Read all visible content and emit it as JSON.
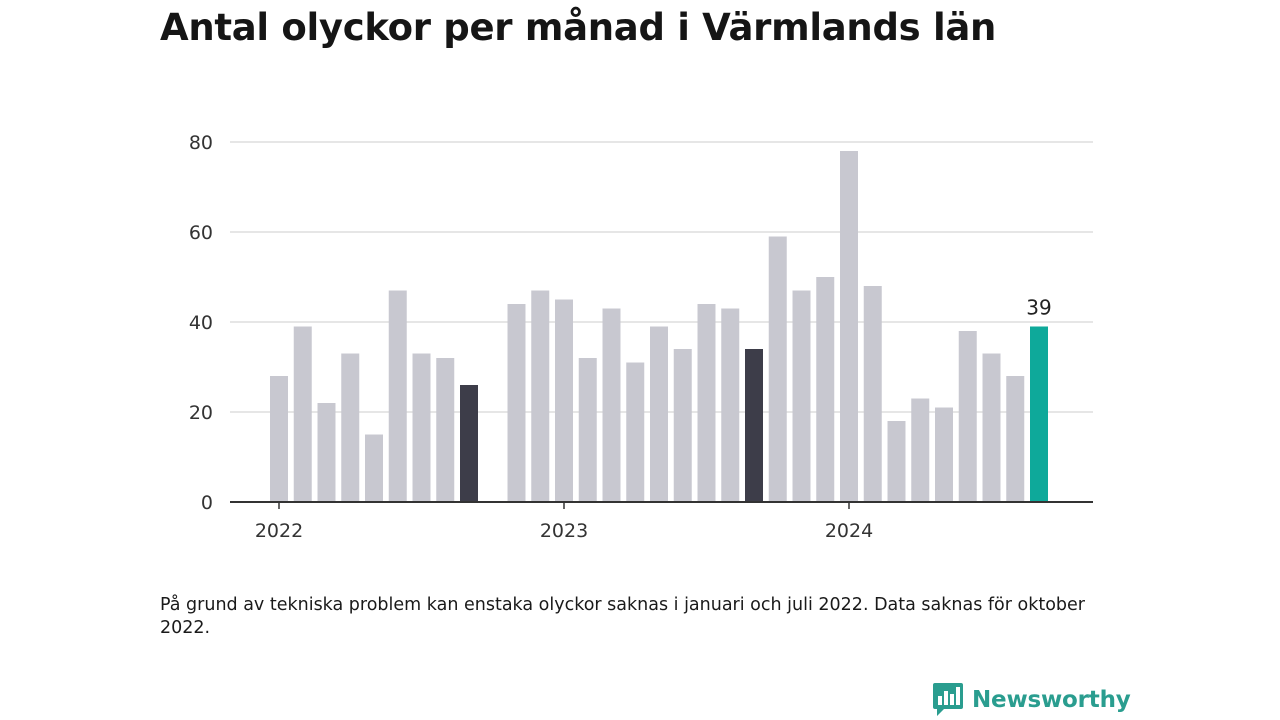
{
  "title": "Antal olyckor per månad i Värmlands län",
  "footnote": "På grund av tekniska problem kan enstaka olyckor saknas i januari och juli 2022. Data saknas för oktober 2022.",
  "brand": {
    "name": "Newsworthy",
    "icon": "bar-chart-speech-bubble-icon",
    "color": "#2a9d8f"
  },
  "colors": {
    "default": "#c8c8d0",
    "highlight_dark": "#3d3d49",
    "highlight_latest": "#0ea99a",
    "grid": "#dddddd",
    "axis": "#333333"
  },
  "chart_data": {
    "type": "bar",
    "title": "Antal olyckor per månad i Värmlands län",
    "xlabel": "",
    "ylabel": "",
    "ylim": [
      0,
      80
    ],
    "yticks": [
      0,
      20,
      40,
      60,
      80
    ],
    "xtick_labels": [
      {
        "label": "2022",
        "month": "2022-01"
      },
      {
        "label": "2023",
        "month": "2023-01"
      },
      {
        "label": "2024",
        "month": "2024-01"
      }
    ],
    "grid": true,
    "legend": "none",
    "x_start": "2022-01",
    "x_end": "2024-09",
    "bars": [
      {
        "month": "2022-01",
        "value": 28,
        "style": "default"
      },
      {
        "month": "2022-02",
        "value": 39,
        "style": "default"
      },
      {
        "month": "2022-03",
        "value": 22,
        "style": "default"
      },
      {
        "month": "2022-04",
        "value": 33,
        "style": "default"
      },
      {
        "month": "2022-05",
        "value": 15,
        "style": "default"
      },
      {
        "month": "2022-06",
        "value": 47,
        "style": "default"
      },
      {
        "month": "2022-07",
        "value": 33,
        "style": "default"
      },
      {
        "month": "2022-08",
        "value": 32,
        "style": "default"
      },
      {
        "month": "2022-09",
        "value": 26,
        "style": "highlight_dark"
      },
      {
        "month": "2022-10",
        "value": null,
        "style": "default"
      },
      {
        "month": "2022-11",
        "value": 44,
        "style": "default"
      },
      {
        "month": "2022-12",
        "value": 47,
        "style": "default"
      },
      {
        "month": "2023-01",
        "value": 45,
        "style": "default"
      },
      {
        "month": "2023-02",
        "value": 32,
        "style": "default"
      },
      {
        "month": "2023-03",
        "value": 43,
        "style": "default"
      },
      {
        "month": "2023-04",
        "value": 31,
        "style": "default"
      },
      {
        "month": "2023-05",
        "value": 39,
        "style": "default"
      },
      {
        "month": "2023-06",
        "value": 34,
        "style": "default"
      },
      {
        "month": "2023-07",
        "value": 44,
        "style": "default"
      },
      {
        "month": "2023-08",
        "value": 43,
        "style": "default"
      },
      {
        "month": "2023-09",
        "value": 34,
        "style": "highlight_dark"
      },
      {
        "month": "2023-10",
        "value": 59,
        "style": "default"
      },
      {
        "month": "2023-11",
        "value": 47,
        "style": "default"
      },
      {
        "month": "2023-12",
        "value": 50,
        "style": "default"
      },
      {
        "month": "2024-01",
        "value": 78,
        "style": "default"
      },
      {
        "month": "2024-02",
        "value": 48,
        "style": "default"
      },
      {
        "month": "2024-03",
        "value": 18,
        "style": "default"
      },
      {
        "month": "2024-04",
        "value": 23,
        "style": "default"
      },
      {
        "month": "2024-05",
        "value": 21,
        "style": "default"
      },
      {
        "month": "2024-06",
        "value": 38,
        "style": "default"
      },
      {
        "month": "2024-07",
        "value": 33,
        "style": "default"
      },
      {
        "month": "2024-08",
        "value": 28,
        "style": "default"
      },
      {
        "month": "2024-09",
        "value": 39,
        "style": "highlight_latest",
        "label": "39"
      }
    ]
  }
}
